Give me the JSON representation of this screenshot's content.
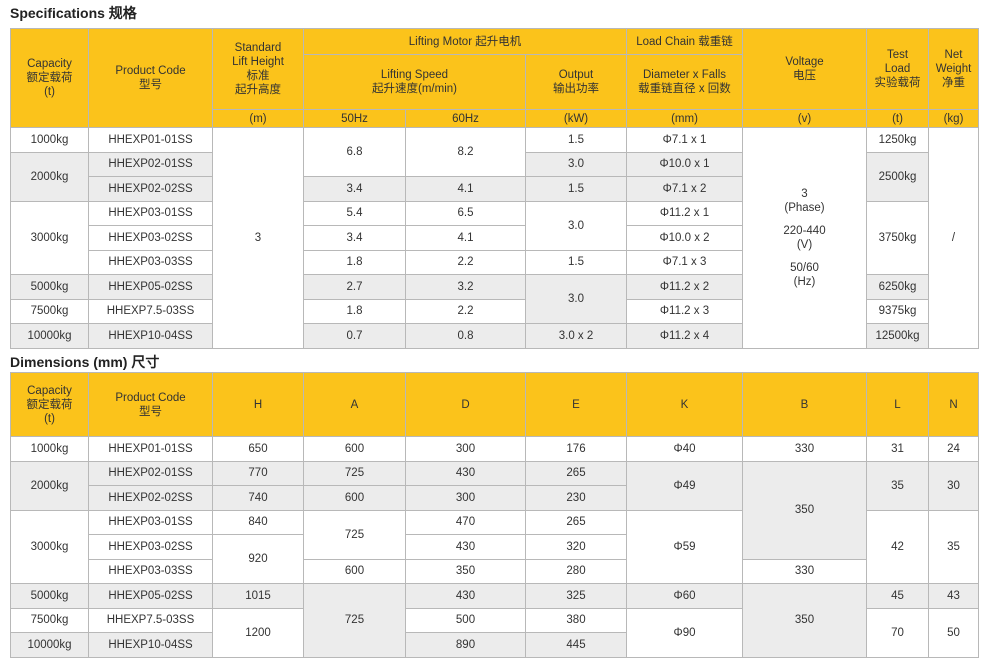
{
  "specifications": {
    "title": "Specifications  规格",
    "header": {
      "capacity": [
        "Capacity",
        "额定载荷",
        "(t)"
      ],
      "product_code": [
        "Product Code",
        "型号"
      ],
      "lift_height": [
        "Standard",
        "Lift Height",
        "标准",
        "起升高度"
      ],
      "lifting_motor": "Lifting Motor 起升电机",
      "load_chain": "Load Chain 载重链",
      "voltage": [
        "Voltage",
        "电压"
      ],
      "test_load": [
        "Test",
        "Load",
        "实验载荷"
      ],
      "net_weight": [
        "Net",
        "Weight",
        "净重"
      ],
      "lifting_speed": [
        "Lifting Speed",
        "起升速度(m/min)"
      ],
      "output": [
        "Output",
        "输出功率"
      ],
      "diameter_falls": [
        "Diameter  x Falls",
        "载重链直径 x 回数"
      ],
      "units": [
        "(m)",
        "50Hz",
        "60Hz",
        "(kW)",
        "(mm)",
        "(v)",
        "(t)",
        "(kg)"
      ]
    },
    "voltage": [
      "3",
      "(Phase)",
      "220-440",
      "(V)",
      "50/60",
      "(Hz)"
    ],
    "rows": [
      [
        "1000kg",
        "HHEXP01-01SS",
        "3",
        "6.8",
        "8.2",
        "1.5",
        "Φ7.1 x 1",
        "1250kg",
        "/"
      ],
      [
        "2000kg",
        "HHEXP02-01SS",
        "3.0",
        "Φ10.0 x 1",
        "2500kg"
      ],
      [
        "HHEXP02-02SS",
        "3.4",
        "4.1",
        "1.5",
        "Φ7.1 x 2"
      ],
      [
        "3000kg",
        "HHEXP03-01SS",
        "5.4",
        "6.5",
        "3.0",
        "Φ11.2 x 1",
        "3750kg"
      ],
      [
        "HHEXP03-02SS",
        "3.4",
        "4.1",
        "Φ10.0 x 2"
      ],
      [
        "HHEXP03-03SS",
        "1.8",
        "2.2",
        "1.5",
        "Φ7.1 x 3"
      ],
      [
        "5000kg",
        "HHEXP05-02SS",
        "2.7",
        "3.2",
        "3.0",
        "Φ11.2 x 2",
        "6250kg"
      ],
      [
        "7500kg",
        "HHEXP7.5-03SS",
        "1.8",
        "2.2",
        "Φ11.2 x 3",
        "9375kg"
      ],
      [
        "10000kg",
        "HHEXP10-04SS",
        "0.7",
        "0.8",
        "3.0 x 2",
        "Φ11.2 x 4",
        "12500kg"
      ]
    ]
  },
  "dimensions": {
    "title": "Dimensions (mm)  尺寸",
    "header": {
      "capacity": [
        "Capacity",
        "额定载荷",
        "(t)"
      ],
      "product_code": [
        "Product Code",
        "型号"
      ],
      "columns": [
        "H",
        "A",
        "D",
        "E",
        "K",
        "B",
        "L",
        "N"
      ]
    },
    "rows": [
      [
        "1000kg",
        "HHEXP01-01SS",
        "650",
        "600",
        "300",
        "176",
        "Φ40",
        "330",
        "31",
        "24"
      ],
      [
        "2000kg",
        "HHEXP02-01SS",
        "770",
        "725",
        "430",
        "265",
        "Φ49",
        "350",
        "35",
        "30"
      ],
      [
        "HHEXP02-02SS",
        "740",
        "600",
        "300",
        "230"
      ],
      [
        "3000kg",
        "HHEXP03-01SS",
        "840",
        "725",
        "470",
        "265",
        "Φ59",
        "42",
        "35"
      ],
      [
        "HHEXP03-02SS",
        "920",
        "430",
        "320"
      ],
      [
        "HHEXP03-03SS",
        "600",
        "350",
        "280",
        "330"
      ],
      [
        "5000kg",
        "HHEXP05-02SS",
        "1015",
        "725",
        "430",
        "325",
        "Φ60",
        "350",
        "45",
        "43"
      ],
      [
        "7500kg",
        "HHEXP7.5-03SS",
        "1200",
        "500",
        "380",
        "Φ90",
        "70",
        "50"
      ],
      [
        "10000kg",
        "HHEXP10-04SS",
        "890",
        "445"
      ]
    ]
  }
}
